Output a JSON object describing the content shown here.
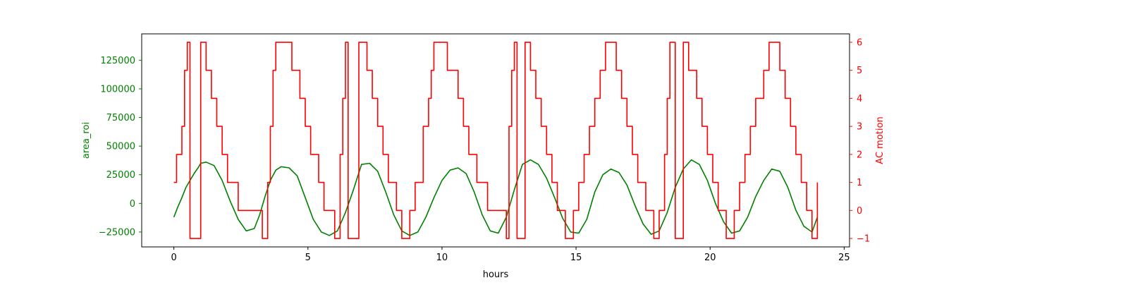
{
  "chart_data": {
    "type": "line",
    "title": "",
    "xlabel": "hours",
    "xlim": [
      -1.2,
      25.2
    ],
    "x_ticks": [
      0,
      5,
      10,
      15,
      20,
      25
    ],
    "grid": false,
    "legend": "none",
    "axes": {
      "left": {
        "label": "area_roi",
        "color": "#008000",
        "ylim": [
          -38000,
          148000
        ],
        "ticks": [
          -25000,
          0,
          25000,
          50000,
          75000,
          100000,
          125000
        ]
      },
      "right": {
        "label": "AC motion",
        "color": "#ff0000",
        "ylim": [
          -1.3,
          6.3
        ],
        "ticks": [
          -1,
          0,
          1,
          2,
          3,
          4,
          5,
          6
        ]
      }
    },
    "series": [
      {
        "axis": "left",
        "color": "#008000",
        "x": [
          0,
          0.15,
          0.3,
          0.45,
          0.6,
          0.75,
          0.9,
          1.0,
          1.2,
          1.5,
          1.8,
          2.1,
          2.4,
          2.7,
          3.0,
          3.2,
          3.4,
          3.6,
          3.8,
          4.0,
          4.3,
          4.6,
          4.9,
          5.2,
          5.5,
          5.8,
          6.1,
          6.4,
          6.7,
          7.0,
          7.3,
          7.6,
          7.9,
          8.2,
          8.5,
          8.8,
          9.1,
          9.4,
          9.7,
          10.0,
          10.3,
          10.6,
          10.9,
          11.2,
          11.5,
          11.8,
          12.1,
          12.4,
          12.7,
          13.0,
          13.3,
          13.6,
          13.9,
          14.2,
          14.5,
          14.8,
          15.1,
          15.4,
          15.7,
          16.0,
          16.3,
          16.6,
          16.9,
          17.2,
          17.5,
          17.8,
          18.1,
          18.4,
          18.7,
          19.0,
          19.3,
          19.6,
          19.9,
          20.2,
          20.5,
          20.8,
          21.1,
          21.4,
          21.7,
          22.0,
          22.3,
          22.6,
          22.9,
          23.2,
          23.5,
          23.8,
          24.0
        ],
        "y": [
          -12000,
          -3000,
          5000,
          14000,
          20000,
          26000,
          31000,
          35000,
          36000,
          33000,
          20000,
          2000,
          -14000,
          -24000,
          -22000,
          -10000,
          6000,
          20000,
          29000,
          32000,
          31000,
          24000,
          5000,
          -14000,
          -25000,
          -28000,
          -24000,
          -8000,
          12000,
          34000,
          35000,
          28000,
          10000,
          -10000,
          -24000,
          -28000,
          -25000,
          -12000,
          5000,
          20000,
          29000,
          31000,
          26000,
          10000,
          -10000,
          -24000,
          -26000,
          -12000,
          12000,
          34000,
          38000,
          34000,
          22000,
          5000,
          -13000,
          -25000,
          -26000,
          -14000,
          10000,
          25000,
          30000,
          27000,
          16000,
          -2000,
          -18000,
          -27000,
          -24000,
          -8000,
          14000,
          30000,
          38000,
          34000,
          20000,
          0,
          -16000,
          -26000,
          -24000,
          -12000,
          6000,
          20000,
          30000,
          28000,
          14000,
          -6000,
          -20000,
          -25000,
          -12000
        ]
      },
      {
        "axis": "right",
        "color": "#ff0000",
        "x": [
          0,
          0.1,
          0.2,
          0.3,
          0.4,
          0.5,
          0.6,
          0.7,
          0.8,
          0.9,
          1.0,
          1.1,
          1.2,
          1.3,
          1.4,
          1.5,
          1.6,
          1.8,
          2.0,
          2.4,
          2.8,
          3.1,
          3.3,
          3.5,
          3.6,
          3.7,
          3.8,
          3.9,
          4.2,
          4.4,
          4.5,
          4.7,
          4.9,
          5.1,
          5.4,
          5.6,
          5.8,
          6.0,
          6.2,
          6.3,
          6.4,
          6.5,
          6.6,
          6.7,
          6.8,
          6.9,
          7.0,
          7.2,
          7.4,
          7.6,
          7.8,
          8.0,
          8.3,
          8.5,
          8.8,
          9.0,
          9.3,
          9.5,
          9.6,
          9.7,
          9.8,
          10.0,
          10.2,
          10.4,
          10.6,
          10.8,
          11.0,
          11.3,
          11.7,
          12.0,
          12.2,
          12.4,
          12.5,
          12.6,
          12.7,
          12.8,
          12.9,
          13.0,
          13.1,
          13.2,
          13.3,
          13.5,
          13.7,
          13.9,
          14.1,
          14.3,
          14.6,
          14.9,
          15.1,
          15.3,
          15.5,
          15.7,
          15.9,
          16.1,
          16.3,
          16.5,
          16.7,
          16.9,
          17.1,
          17.3,
          17.6,
          17.9,
          18.1,
          18.3,
          18.4,
          18.5,
          18.7,
          18.9,
          19.0,
          19.2,
          19.5,
          19.7,
          19.9,
          20.1,
          20.3,
          20.6,
          20.9,
          21.1,
          21.3,
          21.5,
          21.7,
          22.0,
          22.2,
          22.4,
          22.6,
          22.8,
          23.0,
          23.2,
          23.4,
          23.6,
          23.8,
          24.0
        ],
        "y": [
          1,
          2,
          2,
          3,
          5,
          6,
          -1,
          -1,
          -1,
          -1,
          6,
          6,
          5,
          5,
          4,
          4,
          3,
          2,
          1,
          0,
          0,
          0,
          -1,
          1,
          3,
          5,
          6,
          6,
          6,
          5,
          5,
          4,
          3,
          2,
          1,
          0,
          0,
          -1,
          2,
          4,
          6,
          -1,
          -1,
          -1,
          -1,
          6,
          6,
          5,
          4,
          3,
          2,
          1,
          0,
          -1,
          0,
          1,
          3,
          4,
          5,
          6,
          6,
          6,
          5,
          5,
          4,
          3,
          2,
          1,
          0,
          0,
          0,
          -1,
          3,
          5,
          6,
          -1,
          -1,
          -1,
          6,
          6,
          5,
          4,
          3,
          2,
          1,
          0,
          -1,
          0,
          1,
          2,
          3,
          4,
          5,
          6,
          6,
          5,
          4,
          3,
          2,
          1,
          0,
          -1,
          0,
          2,
          4,
          6,
          -1,
          -1,
          6,
          5,
          4,
          3,
          2,
          1,
          0,
          -1,
          0,
          1,
          2,
          3,
          4,
          5,
          6,
          6,
          5,
          4,
          3,
          2,
          1,
          0,
          -1,
          1
        ]
      }
    ]
  }
}
